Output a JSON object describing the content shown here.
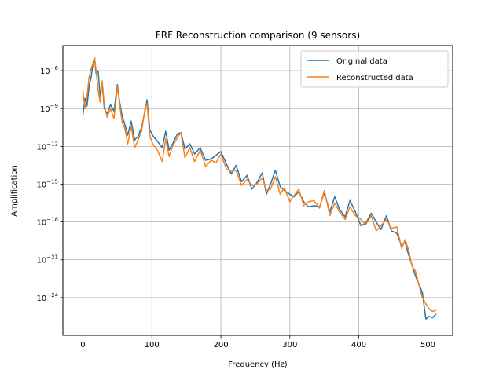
{
  "chart_data": {
    "type": "line",
    "title": "FRF Reconstruction comparison (9 sensors)",
    "xlabel": "Frequency (Hz)",
    "ylabel": "Amplification",
    "xlim": [
      -29,
      536
    ],
    "ylim_exp": [
      -27,
      -4
    ],
    "y_scale": "log",
    "grid": true,
    "legend_position": "top-right",
    "x_ticks": [
      0,
      100,
      200,
      300,
      400,
      500
    ],
    "x_tick_labels": [
      "0",
      "100",
      "200",
      "300",
      "400",
      "500"
    ],
    "y_ticks_exp": [
      -24,
      -21,
      -18,
      -15,
      -12,
      -9,
      -6
    ],
    "y_tick_labels": [
      {
        "base": "10",
        "exp": "−24"
      },
      {
        "base": "10",
        "exp": "−21"
      },
      {
        "base": "10",
        "exp": "−18"
      },
      {
        "base": "10",
        "exp": "−15"
      },
      {
        "base": "10",
        "exp": "−12"
      },
      {
        "base": "10",
        "exp": "−9"
      },
      {
        "base": "10",
        "exp": "−6"
      }
    ],
    "series": [
      {
        "name": "Original data",
        "color": "#1f77b4",
        "x": [
          0,
          3,
          6,
          9,
          12,
          15,
          17,
          19,
          22,
          25,
          28,
          31,
          35,
          40,
          45,
          50,
          53,
          57,
          61,
          65,
          70,
          75,
          80,
          85,
          90,
          93,
          97,
          102,
          108,
          115,
          120,
          125,
          130,
          137,
          142,
          148,
          155,
          162,
          170,
          178,
          186,
          193,
          200,
          208,
          215,
          222,
          230,
          238,
          245,
          252,
          260,
          266,
          272,
          279,
          286,
          292,
          300,
          306,
          313,
          320,
          327,
          335,
          343,
          350,
          358,
          365,
          372,
          380,
          387,
          395,
          403,
          410,
          418,
          425,
          432,
          440,
          447,
          455,
          462,
          467,
          472,
          477,
          482,
          487,
          492,
          497,
          502,
          507,
          512
        ],
        "y_exp": [
          -9.5,
          -8.2,
          -8.8,
          -7.2,
          -6.5,
          -5.3,
          -5.0,
          -6.2,
          -6.0,
          -8.0,
          -7.0,
          -9.0,
          -9.4,
          -8.7,
          -9.2,
          -7.1,
          -8.4,
          -9.6,
          -10.3,
          -11.1,
          -10.0,
          -11.5,
          -11.2,
          -10.5,
          -9.2,
          -8.3,
          -10.7,
          -11.2,
          -11.6,
          -12.1,
          -10.8,
          -12.3,
          -11.8,
          -11.0,
          -10.9,
          -12.2,
          -11.8,
          -12.6,
          -12.1,
          -13.1,
          -13.0,
          -12.7,
          -12.4,
          -13.4,
          -14.2,
          -13.5,
          -14.8,
          -14.3,
          -15.4,
          -14.9,
          -14.1,
          -15.8,
          -15.0,
          -13.9,
          -15.2,
          -15.5,
          -15.8,
          -16.0,
          -15.6,
          -16.4,
          -16.8,
          -16.7,
          -16.8,
          -15.7,
          -17.2,
          -16.0,
          -17.0,
          -17.6,
          -16.3,
          -17.2,
          -18.3,
          -18.1,
          -17.3,
          -18.0,
          -18.6,
          -17.5,
          -18.7,
          -18.9,
          -19.9,
          -19.6,
          -20.6,
          -21.4,
          -22.3,
          -22.9,
          -23.6,
          -25.7,
          -25.5,
          -25.6,
          -25.3
        ]
      },
      {
        "name": "Reconstructed data",
        "color": "#ff7f0e",
        "x": [
          0,
          3,
          6,
          9,
          12,
          15,
          17,
          19,
          22,
          25,
          28,
          31,
          35,
          40,
          45,
          50,
          53,
          57,
          61,
          65,
          70,
          75,
          80,
          85,
          90,
          93,
          97,
          102,
          108,
          115,
          120,
          125,
          130,
          137,
          142,
          148,
          155,
          162,
          170,
          178,
          186,
          193,
          200,
          208,
          215,
          222,
          230,
          238,
          245,
          252,
          260,
          266,
          272,
          279,
          286,
          292,
          300,
          306,
          313,
          320,
          327,
          335,
          343,
          350,
          358,
          365,
          372,
          380,
          387,
          395,
          403,
          410,
          418,
          425,
          432,
          440,
          447,
          455,
          462,
          467,
          472,
          477,
          482,
          487,
          492,
          497,
          502,
          507,
          512
        ],
        "y_exp": [
          -7.6,
          -9.0,
          -8.0,
          -6.5,
          -5.8,
          -5.4,
          -5.0,
          -5.9,
          -7.5,
          -8.5,
          -6.8,
          -8.7,
          -9.7,
          -9.0,
          -9.8,
          -7.3,
          -8.6,
          -10.1,
          -10.6,
          -11.8,
          -10.4,
          -12.1,
          -11.5,
          -10.8,
          -9.0,
          -8.6,
          -11.2,
          -11.9,
          -12.3,
          -13.2,
          -11.4,
          -12.8,
          -12.0,
          -11.3,
          -10.9,
          -12.9,
          -12.1,
          -13.2,
          -12.3,
          -13.6,
          -13.1,
          -13.3,
          -12.6,
          -13.8,
          -14.0,
          -13.9,
          -15.1,
          -14.6,
          -15.1,
          -15.0,
          -14.5,
          -15.5,
          -15.4,
          -14.4,
          -15.8,
          -15.3,
          -16.4,
          -15.9,
          -15.4,
          -16.7,
          -16.4,
          -16.3,
          -16.9,
          -15.5,
          -17.5,
          -16.5,
          -17.2,
          -17.8,
          -16.8,
          -17.5,
          -17.8,
          -18.2,
          -17.5,
          -18.7,
          -18.3,
          -17.8,
          -18.5,
          -18.4,
          -20.1,
          -19.4,
          -20.2,
          -21.5,
          -21.9,
          -23.0,
          -24.0,
          -24.5,
          -24.9,
          -25.1,
          -25.0
        ]
      }
    ]
  }
}
